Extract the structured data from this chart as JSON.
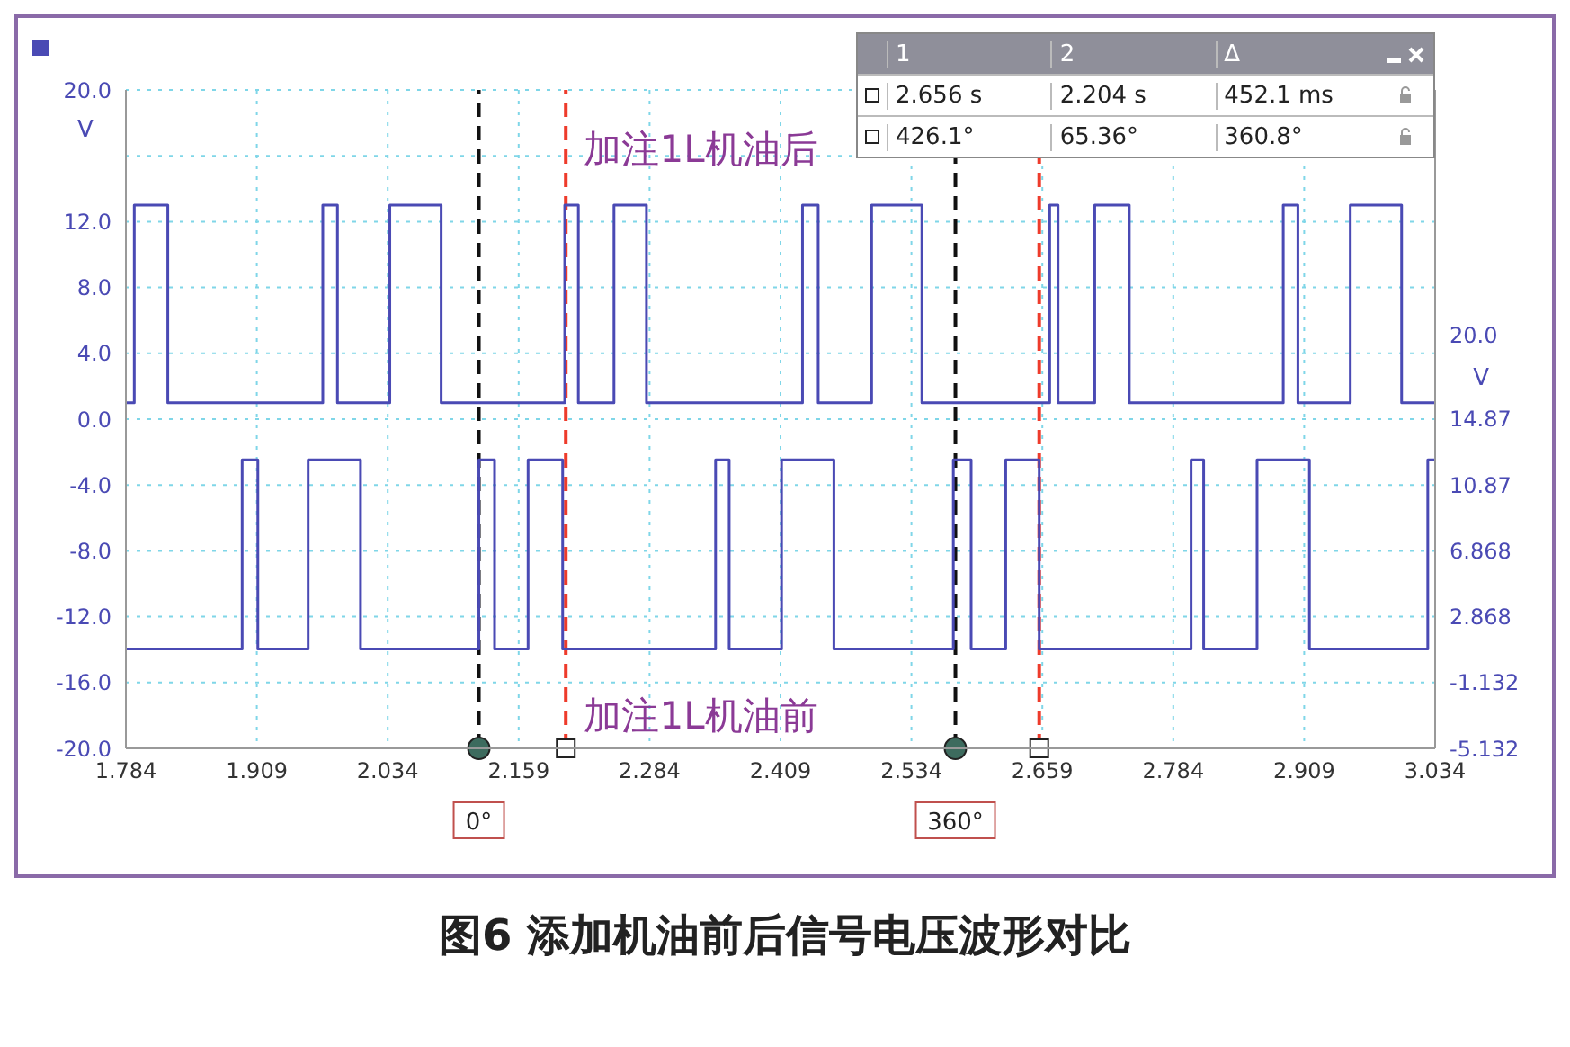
{
  "chart_data": {
    "type": "line",
    "title": "图6 添加机油前后信号电压波形对比",
    "ylabel": "V",
    "y2label": "V",
    "xlim": [
      1.784,
      3.034
    ],
    "xticks": [
      1.784,
      1.909,
      2.034,
      2.159,
      2.284,
      2.409,
      2.534,
      2.659,
      2.784,
      2.909,
      3.034
    ],
    "ylim": [
      -20,
      20
    ],
    "yticks": [
      {
        "value": 20,
        "label": "20.0"
      },
      {
        "value": 16,
        "label": null
      },
      {
        "value": 12,
        "label": "12.0"
      },
      {
        "value": 8,
        "label": "8.0"
      },
      {
        "value": 4,
        "label": "4.0"
      },
      {
        "value": 0,
        "label": "0.0"
      },
      {
        "value": -4,
        "label": "-4.0"
      },
      {
        "value": -8,
        "label": "-8.0"
      },
      {
        "value": -12,
        "label": "-12.0"
      },
      {
        "value": -16,
        "label": "-16.0"
      },
      {
        "value": -20,
        "label": "-20.0"
      }
    ],
    "y2lim": [
      -5.132,
      34.868
    ],
    "y2ticks": [
      {
        "value": 20,
        "label": "20.0"
      },
      14.87,
      10.87,
      6.868,
      2.868,
      -1.132,
      -5.132
    ],
    "grid": true,
    "legend": false,
    "marker": "none",
    "line_style": "solid",
    "series": [
      {
        "name": "加注1L机油后",
        "color": "#4a4ab4",
        "x": [
          1.784,
          1.792,
          1.792,
          1.824,
          1.824,
          1.972,
          1.972,
          1.986,
          1.986,
          2.036,
          2.036,
          2.085,
          2.085,
          2.203,
          2.203,
          2.216,
          2.216,
          2.25,
          2.25,
          2.281,
          2.281,
          2.43,
          2.43,
          2.445,
          2.445,
          2.496,
          2.496,
          2.544,
          2.544,
          2.666,
          2.666,
          2.674,
          2.674,
          2.709,
          2.709,
          2.742,
          2.742,
          2.889,
          2.889,
          2.903,
          2.903,
          2.953,
          2.953,
          3.002,
          3.002,
          3.034
        ],
        "values": [
          1,
          1,
          13,
          13,
          1,
          1,
          13,
          13,
          1,
          1,
          13,
          13,
          1,
          1,
          13,
          13,
          1,
          1,
          13,
          13,
          1,
          1,
          13,
          13,
          1,
          1,
          13,
          13,
          1,
          1,
          13,
          13,
          1,
          1,
          13,
          13,
          1,
          1,
          13,
          13,
          1,
          1,
          13,
          13,
          1,
          1
        ]
      },
      {
        "name": "加注1L机油前",
        "color": "#4a4ab4",
        "axis": "y2",
        "x": [
          1.784,
          1.895,
          1.895,
          1.91,
          1.91,
          1.958,
          1.958,
          2.008,
          2.008,
          2.121,
          2.121,
          2.136,
          2.136,
          2.168,
          2.168,
          2.201,
          2.201,
          2.347,
          2.347,
          2.36,
          2.36,
          2.41,
          2.41,
          2.46,
          2.46,
          2.574,
          2.574,
          2.591,
          2.591,
          2.624,
          2.624,
          2.656,
          2.656,
          2.801,
          2.801,
          2.813,
          2.813,
          2.864,
          2.864,
          2.914,
          2.914,
          3.027,
          3.027,
          3.034
        ],
        "values": [
          0.9,
          0.9,
          12.4,
          12.4,
          0.9,
          0.9,
          12.4,
          12.4,
          0.9,
          0.9,
          12.4,
          12.4,
          0.9,
          0.9,
          12.4,
          12.4,
          0.9,
          0.9,
          12.4,
          12.4,
          0.9,
          0.9,
          12.4,
          12.4,
          0.9,
          0.9,
          12.4,
          12.4,
          0.9,
          0.9,
          12.4,
          12.4,
          0.9,
          0.9,
          12.4,
          12.4,
          0.9,
          0.9,
          12.4,
          12.4,
          0.9,
          0.9,
          12.4,
          12.4
        ]
      }
    ],
    "ref_lines": [
      {
        "axis": "x",
        "value": 2.121,
        "color": "#111111",
        "line_style": "dashed"
      },
      {
        "axis": "x",
        "value": 2.204,
        "color": "#ee3b2b",
        "line_style": "dashed"
      },
      {
        "axis": "x",
        "value": 2.576,
        "color": "#111111",
        "line_style": "dashed"
      },
      {
        "axis": "x",
        "value": 2.656,
        "color": "#ee3b2b",
        "line_style": "dashed"
      }
    ],
    "annotations": [
      "1",
      "2",
      "Δ",
      "2.656 s",
      "2.204 s",
      "452.1 ms",
      "426.1°",
      "65.36°",
      "360.8°",
      {
        "text": "0°",
        "x": 2.121,
        "y": -20
      },
      {
        "text": "360°",
        "x": 2.576,
        "y": -20
      }
    ]
  }
}
